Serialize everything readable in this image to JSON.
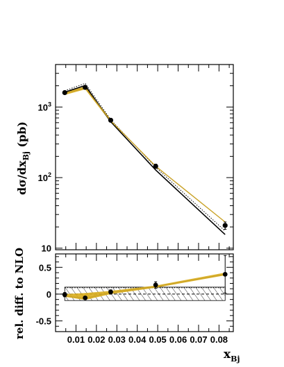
{
  "chart_data": [
    {
      "type": "line",
      "panel": "upper",
      "ylabel_main": "dσ/dx",
      "ylabel_sub": "Bj",
      "ylabel_unit": " (pb)",
      "yscale": "log",
      "ylim": [
        9.5,
        4000
      ],
      "xlim": [
        0.0,
        0.087
      ],
      "ytick_labels": [
        {
          "base": "10",
          "exp": "3",
          "value": 1000
        },
        {
          "base": "10",
          "exp": "2",
          "value": 100
        },
        {
          "base": "10",
          "exp": "",
          "value": 10
        }
      ],
      "series": [
        {
          "role": "data-points",
          "x": [
            0.0045,
            0.0145,
            0.027,
            0.049,
            0.083
          ],
          "y": [
            1600,
            1900,
            650,
            145,
            21
          ]
        },
        {
          "role": "data-errors",
          "x": [
            0.0045,
            0.0145,
            0.027,
            0.049,
            0.083
          ],
          "err": [
            90,
            110,
            35,
            10,
            2.5
          ]
        },
        {
          "role": "nlo-solid",
          "x": [
            0.0045,
            0.0145,
            0.027,
            0.049,
            0.083
          ],
          "y": [
            1620,
            2020,
            620,
            128,
            15.6
          ]
        },
        {
          "role": "nlo-dotted",
          "x": [
            0.0045,
            0.0145,
            0.027,
            0.049,
            0.083
          ],
          "y": [
            1700,
            2160,
            660,
            140,
            17.5
          ]
        },
        {
          "role": "model-gold",
          "x": [
            0.0045,
            0.0145,
            0.027,
            0.049,
            0.083
          ],
          "y": [
            1560,
            1860,
            640,
            145,
            23.5
          ]
        },
        {
          "role": "model-gold-band-low",
          "x": [
            0.0045,
            0.0145,
            0.027
          ],
          "y": [
            1480,
            1780,
            610
          ]
        },
        {
          "role": "model-gold-band-high",
          "x": [
            0.0045,
            0.0145,
            0.027
          ],
          "y": [
            1640,
            1950,
            670
          ]
        }
      ],
      "colors": {
        "gold": "#c9a227",
        "band": "#d9ad1c",
        "nlo": "#000000"
      }
    },
    {
      "type": "line",
      "panel": "lower",
      "ylabel": "rel. diff. to NLO",
      "xlabel_main": "x",
      "xlabel_sub": "Bj",
      "ylim": [
        -0.7,
        0.75
      ],
      "xlim": [
        0.0,
        0.087
      ],
      "yticks": [
        "0.5",
        "0",
        "-0.5"
      ],
      "ytick_values": [
        0.5,
        0,
        -0.5
      ],
      "xticks": [
        "0.01",
        "0.02",
        "0.03",
        "0.04",
        "0.05",
        "0.06",
        "0.07",
        "0.08"
      ],
      "xtick_values": [
        0.01,
        0.02,
        0.03,
        0.04,
        0.05,
        0.06,
        0.07,
        0.08
      ],
      "series": [
        {
          "role": "data-points",
          "x": [
            0.0045,
            0.0145,
            0.027,
            0.049,
            0.083
          ],
          "y": [
            -0.01,
            -0.07,
            0.04,
            0.17,
            0.37
          ]
        },
        {
          "role": "data-errors",
          "x": [
            0.0045,
            0.0145,
            0.027,
            0.049,
            0.083
          ],
          "err": [
            0.04,
            0.03,
            0.04,
            0.06,
            0.35
          ]
        },
        {
          "role": "model-gold",
          "x": [
            0.0045,
            0.0145,
            0.027,
            0.049,
            0.083
          ],
          "y": [
            -0.035,
            -0.08,
            0.03,
            0.14,
            0.37
          ]
        },
        {
          "role": "model-gold-band-low",
          "x": [
            0.0045,
            0.0145,
            0.027,
            0.049,
            0.083
          ],
          "y": [
            -0.05,
            -0.11,
            0.0,
            0.12,
            0.35
          ]
        },
        {
          "role": "model-gold-band-high",
          "x": [
            0.0045,
            0.0145,
            0.027,
            0.049,
            0.083
          ],
          "y": [
            0.0,
            0.02,
            0.06,
            0.16,
            0.4
          ]
        },
        {
          "role": "nlo-dotted",
          "x": [
            0.0045,
            0.083
          ],
          "y": [
            0.12,
            0.12
          ]
        },
        {
          "role": "nlo-uncertainty-hatch",
          "x": [
            0.0045,
            0.083
          ],
          "low": [
            -0.12,
            -0.12
          ],
          "high": [
            0.13,
            0.13
          ]
        }
      ],
      "colors": {
        "gold": "#c9a227",
        "band": "#d9ad1c"
      }
    }
  ]
}
